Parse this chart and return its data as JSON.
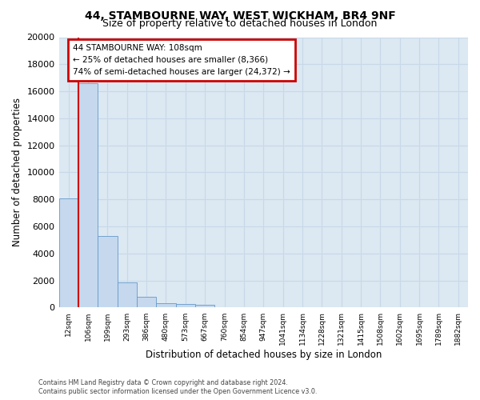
{
  "title": "44, STAMBOURNE WAY, WEST WICKHAM, BR4 9NF",
  "subtitle": "Size of property relative to detached houses in London",
  "xlabel": "Distribution of detached houses by size in London",
  "ylabel": "Number of detached properties",
  "bar_values": [
    8100,
    16600,
    5300,
    1850,
    800,
    350,
    280,
    230,
    0,
    0,
    0,
    0,
    0,
    0,
    0,
    0,
    0,
    0,
    0,
    0,
    0
  ],
  "bin_labels": [
    "12sqm",
    "106sqm",
    "199sqm",
    "293sqm",
    "386sqm",
    "480sqm",
    "573sqm",
    "667sqm",
    "760sqm",
    "854sqm",
    "947sqm",
    "1041sqm",
    "1134sqm",
    "1228sqm",
    "1321sqm",
    "1415sqm",
    "1508sqm",
    "1602sqm",
    "1695sqm",
    "1789sqm",
    "1882sqm"
  ],
  "bar_color": "#c5d8ee",
  "bar_edge_color": "#6699cc",
  "vline_color": "#cc0000",
  "annotation_line1": "44 STAMBOURNE WAY: 108sqm",
  "annotation_line2": "← 25% of detached houses are smaller (8,366)",
  "annotation_line3": "74% of semi-detached houses are larger (24,372) →",
  "annotation_box_edgecolor": "#cc0000",
  "ylim_max": 20000,
  "yticks": [
    0,
    2000,
    4000,
    6000,
    8000,
    10000,
    12000,
    14000,
    16000,
    18000,
    20000
  ],
  "grid_color": "#c8d8e8",
  "bg_color": "#dce8f2",
  "footer_line1": "Contains HM Land Registry data © Crown copyright and database right 2024.",
  "footer_line2": "Contains public sector information licensed under the Open Government Licence v3.0."
}
